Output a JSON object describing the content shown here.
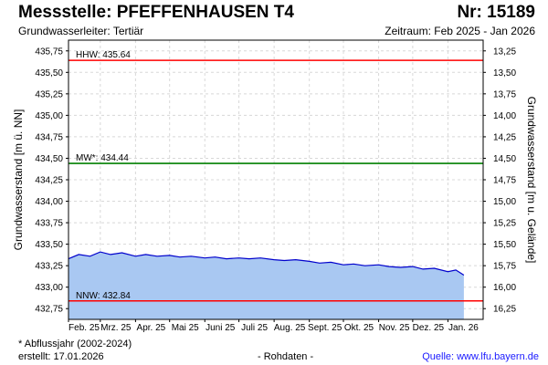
{
  "header": {
    "title": "Messstelle: PFEFFENHAUSEN T4",
    "nr": "Nr: 15189",
    "aquifer": "Grundwasserleiter: Tertiär",
    "period": "Zeitraum: Feb 2025 - Jan 2026"
  },
  "chart_data": {
    "type": "area",
    "ylabel": "Grundwasserstand [m ü. NN]",
    "ylabel_right": "Grundwasserstand [m u. Gelände]",
    "ylim": [
      432.625,
      435.875
    ],
    "yticks": [
      "435,75",
      "435,50",
      "435,25",
      "435,00",
      "434,75",
      "434,50",
      "434,25",
      "434,00",
      "433,75",
      "433,50",
      "433,25",
      "433,00",
      "432,75"
    ],
    "yticks_right": [
      "13,25",
      "13,50",
      "13,75",
      "14,00",
      "14,25",
      "14,50",
      "14,75",
      "15,00",
      "15,25",
      "15,50",
      "15,75",
      "16,00",
      "16,25"
    ],
    "xticks": [
      "Feb. 25",
      "Mrz. 25",
      "Apr. 25",
      "Mai 25",
      "Juni 25",
      "Juli 25",
      "Aug. 25",
      "Sept. 25",
      "Okt. 25",
      "Nov. 25",
      "Dez. 25",
      "Jan. 26"
    ],
    "grid": true,
    "series": [
      {
        "x": [
          "2025-02-01",
          "2025-02-10",
          "2025-02-20",
          "2025-03-01",
          "2025-03-10",
          "2025-03-20",
          "2025-04-01",
          "2025-04-10",
          "2025-04-20",
          "2025-05-01",
          "2025-05-10",
          "2025-05-20",
          "2025-06-01",
          "2025-06-10",
          "2025-06-20",
          "2025-07-01",
          "2025-07-10",
          "2025-07-20",
          "2025-08-01",
          "2025-08-10",
          "2025-08-20",
          "2025-09-01",
          "2025-09-10",
          "2025-09-20",
          "2025-10-01",
          "2025-10-10",
          "2025-10-20",
          "2025-11-01",
          "2025-11-10",
          "2025-11-20",
          "2025-12-01",
          "2025-12-10",
          "2025-12-20",
          "2026-01-01",
          "2026-01-08",
          "2026-01-15"
        ],
        "values": [
          433.33,
          433.38,
          433.36,
          433.41,
          433.38,
          433.4,
          433.36,
          433.38,
          433.36,
          433.37,
          433.35,
          433.36,
          433.34,
          433.35,
          433.33,
          433.34,
          433.33,
          433.34,
          433.32,
          433.31,
          433.32,
          433.3,
          433.28,
          433.29,
          433.26,
          433.27,
          433.25,
          433.26,
          433.24,
          433.23,
          433.24,
          433.21,
          433.22,
          433.18,
          433.2,
          433.14
        ]
      }
    ],
    "reference_lines": [
      {
        "label": "HHW: 435.64",
        "value": 435.64,
        "color": "#ff0000"
      },
      {
        "label": "MW*: 434.44",
        "value": 434.44,
        "color": "#008000"
      },
      {
        "label": "NNW: 432.84",
        "value": 432.84,
        "color": "#ff0000"
      }
    ],
    "fill_color": "#a9c8f2",
    "line_color": "#0000cc"
  },
  "footer": {
    "note": "* Abflussjahr (2002-2024)",
    "created": "erstellt:  17.01.2026",
    "rawdata": "- Rohdaten -",
    "source": "Quelle:  www.lfu.bayern.de"
  }
}
